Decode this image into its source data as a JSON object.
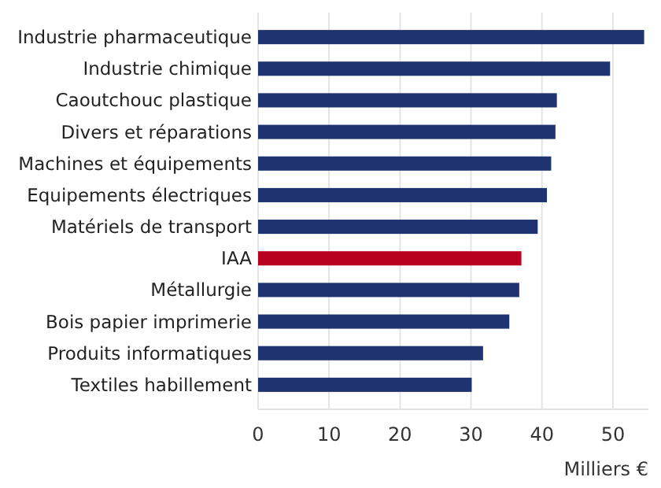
{
  "chart_data": {
    "type": "bar",
    "orientation": "horizontal",
    "xlabel": "Milliers €",
    "categories": [
      "Industrie pharmaceutique",
      "Industrie chimique",
      "Caoutchouc plastique",
      "Divers et réparations",
      "Machines et équipements",
      "Equipements électriques",
      "Matériels de transport",
      "IAA",
      "Métallurgie",
      "Bois papier imprimerie",
      "Produits informatiques",
      "Textiles habillement"
    ],
    "values": [
      54.4,
      49.6,
      42.1,
      41.9,
      41.3,
      40.7,
      39.4,
      37.1,
      36.8,
      35.4,
      31.7,
      30.1
    ],
    "colors": [
      "#1f3370",
      "#1f3370",
      "#1f3370",
      "#1f3370",
      "#1f3370",
      "#1f3370",
      "#1f3370",
      "#b8001f",
      "#1f3370",
      "#1f3370",
      "#1f3370",
      "#1f3370"
    ],
    "xlim": [
      0,
      55
    ],
    "xticks": [
      0,
      10,
      20,
      30,
      40,
      50
    ],
    "grid": "x"
  }
}
